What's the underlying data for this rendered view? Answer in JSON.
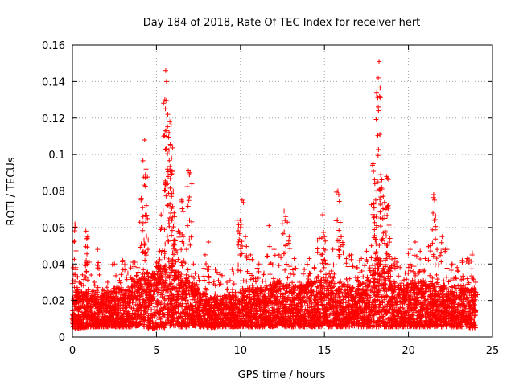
{
  "chart_data": {
    "type": "scatter",
    "title": "Day 184 of 2018, Rate Of TEC Index for receiver hert",
    "xlabel": "GPS time / hours",
    "ylabel": "ROTI / TECUs",
    "xlim": [
      0,
      25
    ],
    "ylim": [
      0,
      0.16
    ],
    "xticks": [
      0,
      5,
      10,
      15,
      20,
      25
    ],
    "yticks": [
      0,
      0.02,
      0.04,
      0.06,
      0.08,
      0.1,
      0.12,
      0.14,
      0.16
    ],
    "xtick_labels": [
      "0",
      "5",
      "10",
      "15",
      "20",
      "25"
    ],
    "ytick_labels": [
      "0",
      "0.02",
      "0.04",
      "0.06",
      "0.08",
      "0.1",
      "0.12",
      "0.14",
      "0.16"
    ],
    "grid": true,
    "legend": "none",
    "marker": "+",
    "color": "#ff0000",
    "series": [
      {
        "points": [
          [
            0.0,
            0.012
          ],
          [
            0.1,
            0.052
          ],
          [
            0.15,
            0.062
          ],
          [
            0.2,
            0.038
          ],
          [
            0.3,
            0.033
          ],
          [
            0.4,
            0.03
          ],
          [
            0.6,
            0.034
          ],
          [
            0.8,
            0.058
          ],
          [
            0.9,
            0.055
          ],
          [
            1.0,
            0.041
          ],
          [
            1.3,
            0.03
          ],
          [
            1.5,
            0.048
          ],
          [
            1.8,
            0.026
          ],
          [
            2.1,
            0.03
          ],
          [
            2.5,
            0.04
          ],
          [
            2.8,
            0.031
          ],
          [
            3.0,
            0.042
          ],
          [
            3.3,
            0.035
          ],
          [
            3.6,
            0.041
          ],
          [
            3.9,
            0.038
          ],
          [
            4.1,
            0.076
          ],
          [
            4.2,
            0.066
          ],
          [
            4.3,
            0.108
          ],
          [
            4.35,
            0.089
          ],
          [
            4.4,
            0.072
          ],
          [
            4.5,
            0.048
          ],
          [
            4.7,
            0.033
          ],
          [
            5.0,
            0.041
          ],
          [
            5.2,
            0.047
          ],
          [
            5.3,
            0.06
          ],
          [
            5.4,
            0.069
          ],
          [
            5.5,
            0.13
          ],
          [
            5.55,
            0.146
          ],
          [
            5.6,
            0.14
          ],
          [
            5.65,
            0.092
          ],
          [
            5.7,
            0.088
          ],
          [
            5.75,
            0.112
          ],
          [
            5.8,
            0.118
          ],
          [
            5.85,
            0.105
          ],
          [
            5.9,
            0.098
          ],
          [
            6.0,
            0.08
          ],
          [
            6.05,
            0.068
          ],
          [
            6.1,
            0.062
          ],
          [
            6.3,
            0.058
          ],
          [
            6.5,
            0.075
          ],
          [
            6.6,
            0.055
          ],
          [
            6.8,
            0.048
          ],
          [
            6.9,
            0.091
          ],
          [
            7.0,
            0.09
          ],
          [
            7.2,
            0.04
          ],
          [
            7.5,
            0.033
          ],
          [
            7.9,
            0.045
          ],
          [
            8.1,
            0.052
          ],
          [
            8.5,
            0.037
          ],
          [
            8.8,
            0.035
          ],
          [
            9.2,
            0.03
          ],
          [
            9.5,
            0.037
          ],
          [
            9.8,
            0.064
          ],
          [
            10.0,
            0.06
          ],
          [
            10.1,
            0.075
          ],
          [
            10.3,
            0.055
          ],
          [
            10.6,
            0.045
          ],
          [
            10.9,
            0.032
          ],
          [
            11.1,
            0.04
          ],
          [
            11.4,
            0.035
          ],
          [
            11.7,
            0.061
          ],
          [
            12.0,
            0.048
          ],
          [
            12.3,
            0.045
          ],
          [
            12.6,
            0.069
          ],
          [
            12.7,
            0.066
          ],
          [
            12.9,
            0.055
          ],
          [
            13.2,
            0.043
          ],
          [
            13.5,
            0.03
          ],
          [
            13.8,
            0.037
          ],
          [
            14.1,
            0.043
          ],
          [
            14.4,
            0.038
          ],
          [
            14.7,
            0.054
          ],
          [
            14.9,
            0.067
          ],
          [
            15.0,
            0.055
          ],
          [
            15.2,
            0.04
          ],
          [
            15.5,
            0.048
          ],
          [
            15.8,
            0.08
          ],
          [
            15.85,
            0.078
          ],
          [
            16.0,
            0.055
          ],
          [
            16.3,
            0.043
          ],
          [
            16.6,
            0.045
          ],
          [
            16.9,
            0.038
          ],
          [
            17.2,
            0.043
          ],
          [
            17.5,
            0.047
          ],
          [
            17.8,
            0.05
          ],
          [
            17.9,
            0.095
          ],
          [
            18.0,
            0.084
          ],
          [
            18.05,
            0.075
          ],
          [
            18.1,
            0.06
          ],
          [
            18.2,
            0.142
          ],
          [
            18.25,
            0.151
          ],
          [
            18.3,
            0.111
          ],
          [
            18.35,
            0.089
          ],
          [
            18.4,
            0.082
          ],
          [
            18.5,
            0.077
          ],
          [
            18.6,
            0.065
          ],
          [
            18.7,
            0.088
          ],
          [
            18.8,
            0.072
          ],
          [
            18.9,
            0.054
          ],
          [
            19.2,
            0.043
          ],
          [
            19.5,
            0.038
          ],
          [
            19.8,
            0.035
          ],
          [
            20.1,
            0.048
          ],
          [
            20.4,
            0.052
          ],
          [
            20.7,
            0.047
          ],
          [
            21.0,
            0.043
          ],
          [
            21.3,
            0.05
          ],
          [
            21.5,
            0.078
          ],
          [
            21.55,
            0.075
          ],
          [
            21.7,
            0.048
          ],
          [
            22.0,
            0.055
          ],
          [
            22.3,
            0.048
          ],
          [
            22.6,
            0.04
          ],
          [
            22.9,
            0.038
          ],
          [
            23.2,
            0.042
          ],
          [
            23.5,
            0.043
          ],
          [
            23.8,
            0.046
          ],
          [
            24.0,
            0.03
          ]
        ],
        "envelope": {
          "x": [
            0,
            0.5,
            1.0,
            1.5,
            2.0,
            2.5,
            3.0,
            3.5,
            4.0,
            4.5,
            5.0,
            5.5,
            6.0,
            6.5,
            7.0,
            7.5,
            8.0,
            8.5,
            9.0,
            9.5,
            10.0,
            10.5,
            11.0,
            11.5,
            12.0,
            12.5,
            13.0,
            13.5,
            14.0,
            14.5,
            15.0,
            15.5,
            16.0,
            16.5,
            17.0,
            17.5,
            18.0,
            18.5,
            19.0,
            19.5,
            20.0,
            20.5,
            21.0,
            21.5,
            22.0,
            22.5,
            23.0,
            23.5,
            24.0
          ],
          "y_low": [
            0.004,
            0.005,
            0.005,
            0.006,
            0.005,
            0.006,
            0.005,
            0.006,
            0.006,
            0.005,
            0.004,
            0.006,
            0.006,
            0.005,
            0.006,
            0.006,
            0.005,
            0.005,
            0.006,
            0.005,
            0.006,
            0.005,
            0.006,
            0.005,
            0.006,
            0.006,
            0.005,
            0.006,
            0.005,
            0.006,
            0.005,
            0.006,
            0.005,
            0.006,
            0.006,
            0.005,
            0.006,
            0.005,
            0.006,
            0.005,
            0.006,
            0.005,
            0.006,
            0.005,
            0.006,
            0.005,
            0.006,
            0.005,
            0.005
          ],
          "y_high": [
            0.022,
            0.024,
            0.026,
            0.025,
            0.024,
            0.028,
            0.027,
            0.03,
            0.034,
            0.04,
            0.03,
            0.048,
            0.04,
            0.034,
            0.032,
            0.026,
            0.022,
            0.022,
            0.023,
            0.024,
            0.026,
            0.028,
            0.026,
            0.028,
            0.03,
            0.03,
            0.028,
            0.028,
            0.03,
            0.032,
            0.035,
            0.032,
            0.03,
            0.028,
            0.028,
            0.032,
            0.04,
            0.046,
            0.032,
            0.028,
            0.03,
            0.032,
            0.03,
            0.032,
            0.03,
            0.028,
            0.028,
            0.028,
            0.026
          ]
        }
      }
    ]
  }
}
